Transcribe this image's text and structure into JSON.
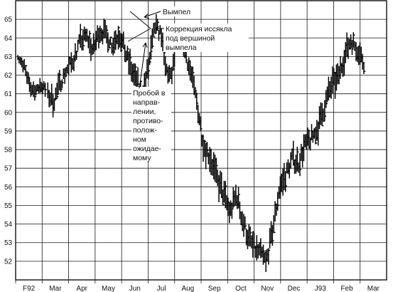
{
  "chart_data": {
    "type": "ohlc",
    "title": "",
    "xlabel": "",
    "ylabel": "",
    "ylim": [
      51,
      66
    ],
    "y_ticks": [
      52,
      53,
      54,
      55,
      56,
      57,
      58,
      59,
      60,
      61,
      62,
      63,
      64,
      65
    ],
    "y_tick_labels": [
      "52",
      "53",
      "54",
      "55",
      "56",
      "57",
      "58",
      "59",
      "60",
      "61",
      "62",
      "63",
      "64",
      "65"
    ],
    "x_tick_labels": [
      "F92",
      "Mar",
      "Apr",
      "May",
      "Jun",
      "Jul",
      "Aug",
      "Sep",
      "Oct",
      "Nov",
      "Dec",
      "J93",
      "Feb",
      "Mar"
    ],
    "grid": true,
    "keypoints": [
      [
        0,
        62.8,
        0.5
      ],
      [
        2,
        62.5,
        0.5
      ],
      [
        4,
        61.3,
        0.6
      ],
      [
        5,
        61.2,
        0.6
      ],
      [
        6,
        61.2,
        0.5
      ],
      [
        7,
        61.5,
        0.6
      ],
      [
        9,
        61.0,
        0.7
      ],
      [
        11,
        60.6,
        1.0
      ],
      [
        13,
        61.6,
        0.8
      ],
      [
        15,
        62.3,
        0.7
      ],
      [
        17,
        62.8,
        0.8
      ],
      [
        19,
        63.8,
        0.9
      ],
      [
        21,
        64.1,
        0.8
      ],
      [
        23,
        63.3,
        0.9
      ],
      [
        25,
        64.4,
        0.9
      ],
      [
        27,
        64.2,
        0.8
      ],
      [
        29,
        63.6,
        0.8
      ],
      [
        31,
        64.3,
        0.9
      ],
      [
        33,
        63.2,
        1.0
      ],
      [
        35,
        62.2,
        1.0
      ],
      [
        37,
        61.3,
        1.0
      ],
      [
        38,
        60.8,
        0.9
      ],
      [
        40,
        62.4,
        1.0
      ],
      [
        42,
        64.6,
        0.9
      ],
      [
        44,
        64.2,
        0.8
      ],
      [
        45,
        62.5,
        0.9
      ],
      [
        47,
        61.8,
        0.8
      ],
      [
        49,
        64.2,
        0.8
      ],
      [
        51,
        63.4,
        0.8
      ],
      [
        53,
        62.1,
        0.9
      ],
      [
        55,
        60.4,
        1.0
      ],
      [
        57,
        58.2,
        1.1
      ],
      [
        59,
        57.6,
        1.1
      ],
      [
        61,
        56.4,
        1.1
      ],
      [
        63,
        55.6,
        1.1
      ],
      [
        65,
        54.6,
        1.1
      ],
      [
        67,
        55.6,
        1.0
      ],
      [
        69,
        54.1,
        1.1
      ],
      [
        71,
        53.1,
        1.1
      ],
      [
        73,
        52.6,
        1.0
      ],
      [
        75,
        52.3,
        1.0
      ],
      [
        76,
        51.9,
        0.9
      ],
      [
        78,
        53.6,
        1.0
      ],
      [
        80,
        55.8,
        1.1
      ],
      [
        82,
        56.6,
        1.0
      ],
      [
        84,
        57.5,
        1.1
      ],
      [
        86,
        57.3,
        1.0
      ],
      [
        88,
        58.2,
        1.0
      ],
      [
        90,
        58.6,
        1.0
      ],
      [
        92,
        59.2,
        1.0
      ],
      [
        94,
        60.4,
        1.1
      ],
      [
        96,
        61.4,
        1.1
      ],
      [
        98,
        61.8,
        1.0
      ],
      [
        100,
        63.0,
        1.0
      ],
      [
        102,
        63.9,
        0.9
      ],
      [
        104,
        63.4,
        0.9
      ],
      [
        106,
        62.7,
        0.9
      ]
    ],
    "gaps": [
      3,
      8
    ]
  },
  "annotations": {
    "pennant": "Вымпел",
    "correction": [
      "Коррекция иссякла",
      "под вершиной",
      "вымпела"
    ],
    "breakout": [
      "Пробой в",
      "направ-",
      "лении,",
      "противо-",
      "полож-",
      "ном",
      "ожидае-",
      "мому"
    ]
  }
}
